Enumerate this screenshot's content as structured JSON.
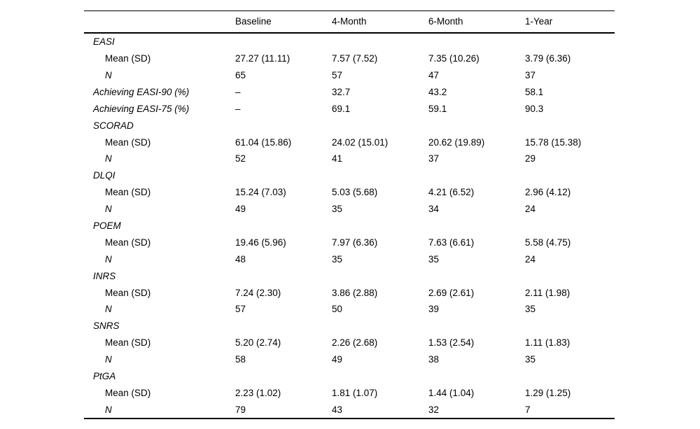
{
  "table": {
    "columns": [
      "",
      "Baseline",
      "4-Month",
      "6-Month",
      "1-Year"
    ],
    "rows": [
      {
        "label": "EASI",
        "italic": true,
        "indent": false,
        "values": [
          "",
          "",
          "",
          ""
        ]
      },
      {
        "label": "Mean (SD)",
        "italic": false,
        "indent": true,
        "values": [
          "27.27 (11.11)",
          "7.57 (7.52)",
          "7.35 (10.26)",
          "3.79 (6.36)"
        ]
      },
      {
        "label": "N",
        "italic": true,
        "indent": true,
        "values": [
          "65",
          "57",
          "47",
          "37"
        ]
      },
      {
        "label": "Achieving EASI-90 (%)",
        "italic": true,
        "indent": false,
        "values": [
          "–",
          "32.7",
          "43.2",
          "58.1"
        ]
      },
      {
        "label": "Achieving EASI-75 (%)",
        "italic": true,
        "indent": false,
        "values": [
          "–",
          "69.1",
          "59.1",
          "90.3"
        ]
      },
      {
        "label": "SCORAD",
        "italic": true,
        "indent": false,
        "values": [
          "",
          "",
          "",
          ""
        ]
      },
      {
        "label": "Mean (SD)",
        "italic": false,
        "indent": true,
        "values": [
          "61.04 (15.86)",
          "24.02 (15.01)",
          "20.62 (19.89)",
          "15.78 (15.38)"
        ]
      },
      {
        "label": "N",
        "italic": true,
        "indent": true,
        "values": [
          "52",
          "41",
          "37",
          "29"
        ]
      },
      {
        "label": "DLQI",
        "italic": true,
        "indent": false,
        "values": [
          "",
          "",
          "",
          ""
        ]
      },
      {
        "label": "Mean (SD)",
        "italic": false,
        "indent": true,
        "values": [
          "15.24 (7.03)",
          "5.03 (5.68)",
          "4.21 (6.52)",
          "2.96 (4.12)"
        ]
      },
      {
        "label": "N",
        "italic": true,
        "indent": true,
        "values": [
          "49",
          "35",
          "34",
          "24"
        ]
      },
      {
        "label": "POEM",
        "italic": true,
        "indent": false,
        "values": [
          "",
          "",
          "",
          ""
        ]
      },
      {
        "label": "Mean (SD)",
        "italic": false,
        "indent": true,
        "values": [
          "19.46 (5.96)",
          "7.97 (6.36)",
          "7.63 (6.61)",
          "5.58 (4.75)"
        ]
      },
      {
        "label": "N",
        "italic": true,
        "indent": true,
        "values": [
          "48",
          "35",
          "35",
          "24"
        ]
      },
      {
        "label": "INRS",
        "italic": true,
        "indent": false,
        "values": [
          "",
          "",
          "",
          ""
        ]
      },
      {
        "label": "Mean (SD)",
        "italic": false,
        "indent": true,
        "values": [
          "7.24 (2.30)",
          "3.86 (2.88)",
          "2.69 (2.61)",
          "2.11 (1.98)"
        ]
      },
      {
        "label": "N",
        "italic": true,
        "indent": true,
        "values": [
          "57",
          "50",
          "39",
          "35"
        ]
      },
      {
        "label": "SNRS",
        "italic": true,
        "indent": false,
        "values": [
          "",
          "",
          "",
          ""
        ]
      },
      {
        "label": "Mean (SD)",
        "italic": false,
        "indent": true,
        "values": [
          "5.20 (2.74)",
          "2.26 (2.68)",
          "1.53 (2.54)",
          "1.11 (1.83)"
        ]
      },
      {
        "label": "N",
        "italic": true,
        "indent": true,
        "values": [
          "58",
          "49",
          "38",
          "35"
        ]
      },
      {
        "label": "PtGA",
        "italic": true,
        "indent": false,
        "values": [
          "",
          "",
          "",
          ""
        ]
      },
      {
        "label": "Mean (SD)",
        "italic": false,
        "indent": true,
        "values": [
          "2.23 (1.02)",
          "1.81 (1.07)",
          "1.44 (1.04)",
          "1.29 (1.25)"
        ]
      },
      {
        "label": "N",
        "italic": true,
        "indent": true,
        "values": [
          "79",
          "43",
          "32",
          "7"
        ]
      }
    ]
  }
}
